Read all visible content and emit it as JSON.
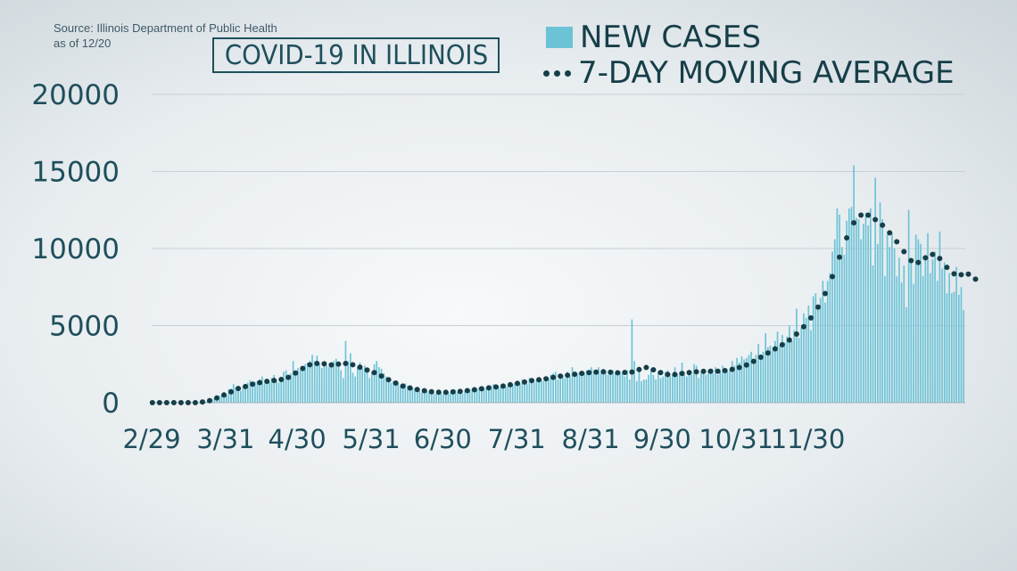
{
  "source": {
    "line1": "Source: Illinois Department of Public Health",
    "line2": "as of 12/20"
  },
  "title": "COVID-19 IN ILLINOIS",
  "legend": {
    "bars_label": "NEW CASES",
    "avg_label": "7-DAY MOVING AVERAGE"
  },
  "colors": {
    "bar": "#6cc3d6",
    "dots": "#163e48",
    "axis_text": "#1f4f5c",
    "grid": "#c7d0d5"
  },
  "chart_data": {
    "type": "bar",
    "title": "COVID-19 IN ILLINOIS",
    "xlabel": "",
    "ylabel": "",
    "ylim": [
      0,
      20000
    ],
    "yticks": [
      "0",
      "5000",
      "10000",
      "15000",
      "20000"
    ],
    "xticks": [
      "2/29",
      "3/31",
      "4/30",
      "5/31",
      "6/30",
      "7/31",
      "8/31",
      "9/30",
      "10/31",
      "11/30"
    ],
    "grid": true,
    "legend_position": "top-right",
    "series": [
      {
        "name": "NEW CASES",
        "type": "bar",
        "x_start": "2/29",
        "x_end": "12/20",
        "values": [
          0,
          0,
          0,
          0,
          0,
          0,
          0,
          0,
          0,
          0,
          0,
          0,
          0,
          0,
          0,
          0,
          0,
          0,
          0,
          0,
          16,
          57,
          63,
          93,
          168,
          236,
          296,
          330,
          460,
          470,
          690,
          490,
          880,
          900,
          1200,
          1000,
          900,
          750,
          1050,
          1200,
          1300,
          1450,
          1100,
          1350,
          1400,
          1500,
          1700,
          1250,
          1200,
          1350,
          1600,
          1800,
          1450,
          1300,
          1600,
          2000,
          2100,
          1800,
          1900,
          2700,
          2000,
          2250,
          2100,
          2150,
          2500,
          2600,
          2700,
          3100,
          2700,
          3050,
          2500,
          2250,
          2650,
          2400,
          2300,
          2600,
          2700,
          2850,
          2500,
          2100,
          1600,
          4000,
          2700,
          3200,
          1950,
          1700,
          2300,
          2600,
          2200,
          2400,
          2000,
          1600,
          2000,
          2500,
          2700,
          2300,
          2200,
          1900,
          1700,
          1500,
          1300,
          1400,
          1200,
          1250,
          1100,
          1000,
          1250,
          1100,
          980,
          1000,
          900,
          800,
          750,
          650,
          900,
          800,
          700,
          650,
          600,
          580,
          700,
          650,
          550,
          600,
          700,
          650,
          600,
          800,
          700,
          750,
          600,
          800,
          900,
          850,
          900,
          750,
          900,
          1000,
          850,
          900,
          1000,
          950,
          1100,
          1200,
          1000,
          1100,
          1000,
          1200,
          1050,
          1100,
          1300,
          1200,
          1300,
          1400,
          1250,
          1500,
          1300,
          1200,
          1600,
          1400,
          1300,
          1500,
          1600,
          1500,
          1400,
          1700,
          1600,
          1800,
          1900,
          2000,
          1500,
          1700,
          1800,
          1600,
          2000,
          1700,
          2300,
          1800,
          1900,
          2000,
          1800,
          1950,
          2100,
          1900,
          2300,
          2100,
          2000,
          2300,
          1900,
          2200,
          2100,
          1800,
          2000,
          2100,
          1900,
          1800,
          2000,
          1900,
          1700,
          2100,
          1500,
          5400,
          2700,
          1400,
          2100,
          1400,
          1500,
          1500,
          1800,
          2200,
          1800,
          1500,
          2000,
          1600,
          1700,
          2000,
          2100,
          1700,
          1800,
          2300,
          1800,
          2000,
          2600,
          1800,
          1700,
          2000,
          1800,
          2500,
          2400,
          1600,
          2000,
          2200,
          1800,
          2100,
          1900,
          1900,
          2300,
          1800,
          2000,
          2400,
          2100,
          2000,
          2100,
          2700,
          2400,
          2900,
          2600,
          3000,
          2800,
          2900,
          3100,
          3300,
          2700,
          3100,
          3800,
          2900,
          3300,
          4500,
          3600,
          3700,
          3400,
          4000,
          4600,
          3700,
          4400,
          3900,
          4300,
          5000,
          4000,
          4700,
          6100,
          4200,
          4900,
          5800,
          5500,
          6300,
          4700,
          6900,
          7100,
          6100,
          6800,
          7900,
          6500,
          7900,
          8400,
          9800,
          10600,
          12600,
          12200,
          10100,
          9600,
          11800,
          12600,
          12700,
          15400,
          12000,
          11900,
          10600,
          11600,
          12300,
          11500,
          12600,
          8900,
          14600,
          10300,
          13000,
          11900,
          8200,
          10900,
          10100,
          11000,
          10000,
          8200,
          9400,
          7800,
          8900,
          6200,
          12500,
          9200,
          7700,
          10900,
          10600,
          10300,
          8200,
          9500,
          11000,
          8400,
          9300,
          9800,
          7900,
          11100,
          8700,
          9100,
          7100,
          8400,
          7100,
          7200,
          8800,
          7000,
          7500,
          6000
        ]
      },
      {
        "name": "7-DAY MOVING AVERAGE",
        "type": "dots",
        "values": [
          0,
          0,
          0,
          0,
          0,
          0,
          0,
          0,
          0,
          0,
          0,
          0,
          0,
          0,
          0,
          0,
          0,
          0,
          0,
          0,
          18,
          45,
          70,
          95,
          130,
          180,
          240,
          300,
          360,
          430,
          500,
          560,
          630,
          700,
          780,
          860,
          920,
          960,
          1000,
          1050,
          1100,
          1150,
          1200,
          1240,
          1270,
          1300,
          1330,
          1360,
          1380,
          1400,
          1420,
          1440,
          1460,
          1480,
          1500,
          1540,
          1580,
          1640,
          1720,
          1820,
          1920,
          2020,
          2120,
          2220,
          2320,
          2400,
          2460,
          2500,
          2520,
          2540,
          2550,
          2540,
          2520,
          2500,
          2470,
          2450,
          2460,
          2480,
          2500,
          2520,
          2530,
          2540,
          2530,
          2500,
          2460,
          2410,
          2360,
          2300,
          2240,
          2180,
          2120,
          2060,
          2000,
          1950,
          1880,
          1810,
          1730,
          1650,
          1570,
          1490,
          1410,
          1340,
          1270,
          1200,
          1140,
          1080,
          1030,
          990,
          950,
          910,
          880,
          850,
          820,
          790,
          770,
          750,
          730,
          710,
          700,
          690,
          680,
          670,
          670,
          670,
          680,
          690,
          700,
          710,
          720,
          730,
          740,
          760,
          780,
          800,
          820,
          840,
          860,
          880,
          900,
          920,
          940,
          960,
          980,
          1000,
          1020,
          1040,
          1060,
          1080,
          1100,
          1130,
          1160,
          1190,
          1220,
          1250,
          1280,
          1310,
          1340,
          1370,
          1400,
          1430,
          1450,
          1470,
          1490,
          1510,
          1530,
          1550,
          1580,
          1610,
          1640,
          1670,
          1700,
          1720,
          1740,
          1760,
          1780,
          1800,
          1820,
          1840,
          1860,
          1880,
          1900,
          1920,
          1940,
          1950,
          1960,
          1970,
          1980,
          1990,
          2000,
          2000,
          1990,
          1980,
          1970,
          1960,
          1950,
          1940,
          1940,
          1950,
          1960,
          1970,
          1980,
          1990,
          2000,
          2080,
          2150,
          2220,
          2260,
          2280,
          2260,
          2200,
          2130,
          2060,
          2000,
          1950,
          1900,
          1860,
          1830,
          1820,
          1820,
          1830,
          1850,
          1870,
          1890,
          1910,
          1930,
          1950,
          1970,
          1990,
          2000,
          2010,
          2020,
          2030,
          2040,
          2040,
          2040,
          2040,
          2040,
          2040,
          2050,
          2060,
          2080,
          2100,
          2130,
          2160,
          2200,
          2240,
          2280,
          2320,
          2380,
          2440,
          2510,
          2590,
          2680,
          2770,
          2860,
          2950,
          3040,
          3130,
          3220,
          3310,
          3400,
          3490,
          3580,
          3670,
          3760,
          3850,
          3950,
          4060,
          4180,
          4310,
          4450,
          4600,
          4760,
          4930,
          5110,
          5300,
          5500,
          5720,
          5950,
          6200,
          6470,
          6760,
          7080,
          7420,
          7790,
          8180,
          8590,
          9010,
          9440,
          9870,
          10290,
          10690,
          11060,
          11390,
          11670,
          11900,
          12060,
          12170,
          12220,
          12220,
          12170,
          12090,
          11990,
          11880,
          11770,
          11650,
          11520,
          11370,
          11200,
          11020,
          10830,
          10640,
          10440,
          10230,
          10020,
          9800,
          9580,
          9380,
          9220,
          9120,
          9080,
          9100,
          9170,
          9280,
          9400,
          9510,
          9590,
          9620,
          9590,
          9500,
          9360,
          9180,
          8980,
          8780,
          8600,
          8460,
          8360,
          8300,
          8280,
          8300,
          8330,
          8350,
          8340,
          8290,
          8180,
          8010,
          7800,
          7560
        ]
      }
    ]
  }
}
